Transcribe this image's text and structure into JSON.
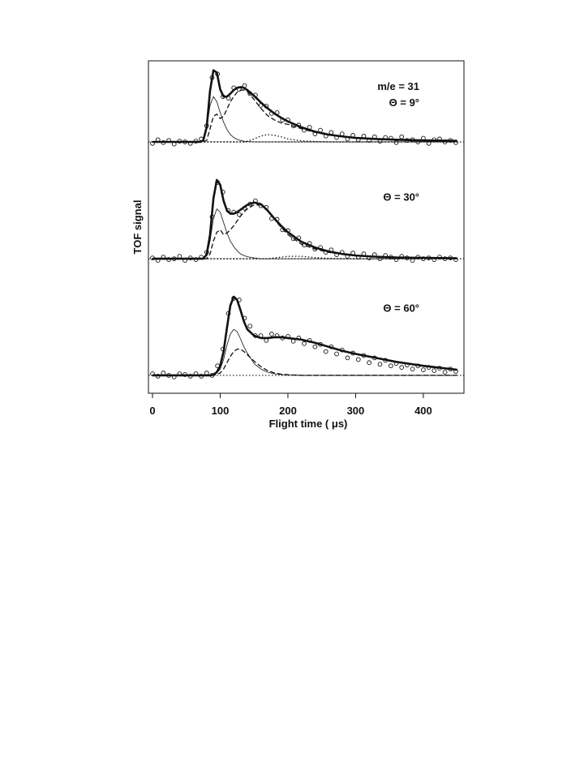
{
  "chart_data": {
    "type": "line",
    "xlabel": "Flight time ( μs)",
    "ylabel": "TOF signal",
    "xlim": [
      -6,
      460
    ],
    "xticks": [
      0,
      100,
      200,
      300,
      400
    ],
    "point_x": [
      0,
      8,
      16,
      24,
      32,
      40,
      48,
      56,
      64,
      72,
      80,
      88,
      96,
      104,
      112,
      120,
      128,
      136,
      144,
      152,
      160,
      168,
      176,
      184,
      192,
      200,
      208,
      216,
      224,
      232,
      240,
      248,
      256,
      264,
      272,
      280,
      288,
      296,
      304,
      312,
      320,
      328,
      336,
      344,
      352,
      360,
      368,
      376,
      384,
      392,
      400,
      408,
      416,
      424,
      432,
      440,
      448
    ],
    "fit_x": [
      0,
      40,
      70,
      75,
      80,
      85,
      90,
      95,
      100,
      105,
      110,
      115,
      120,
      125,
      130,
      135,
      140,
      150,
      160,
      170,
      180,
      190,
      200,
      220,
      240,
      260,
      280,
      300,
      330,
      360,
      400,
      450
    ],
    "panels": [
      {
        "annotations": [
          "m/e = 31",
          "Θ = 9°"
        ],
        "ylim": [
          -0.407,
          1.11
        ],
        "points": [
          -0.02,
          0.03,
          -0.01,
          0.02,
          -0.03,
          0.01,
          0.0,
          -0.02,
          0.01,
          0.04,
          0.22,
          0.88,
          0.93,
          0.62,
          0.6,
          0.74,
          0.72,
          0.77,
          0.66,
          0.64,
          0.5,
          0.49,
          0.39,
          0.4,
          0.3,
          0.3,
          0.22,
          0.23,
          0.16,
          0.2,
          0.11,
          0.16,
          0.08,
          0.13,
          0.06,
          0.11,
          0.04,
          0.09,
          0.03,
          0.08,
          0.02,
          0.07,
          0.01,
          0.06,
          0.05,
          -0.01,
          0.07,
          0.02,
          0.03,
          0.0,
          0.05,
          -0.02,
          0.03,
          0.04,
          0.0,
          0.02,
          -0.01
        ],
        "series": [
          {
            "style": "thick",
            "values": [
              0,
              0,
              0,
              0.02,
              0.2,
              0.7,
              0.98,
              0.95,
              0.72,
              0.62,
              0.62,
              0.66,
              0.71,
              0.74,
              0.75,
              0.74,
              0.71,
              0.63,
              0.54,
              0.46,
              0.39,
              0.33,
              0.28,
              0.2,
              0.14,
              0.1,
              0.075,
              0.055,
              0.04,
              0.03,
              0.02,
              0.015
            ]
          },
          {
            "style": "thin",
            "values": [
              0,
              0,
              0,
              0.02,
              0.18,
              0.5,
              0.62,
              0.55,
              0.4,
              0.27,
              0.17,
              0.1,
              0.06,
              0.035,
              0.02,
              0.01,
              0.005,
              0,
              0,
              0,
              0,
              0,
              0,
              0,
              0,
              0,
              0,
              0,
              0,
              0,
              0,
              0
            ]
          },
          {
            "style": "dashed",
            "values": [
              0,
              0,
              0,
              0,
              0.02,
              0.18,
              0.35,
              0.38,
              0.32,
              0.35,
              0.45,
              0.55,
              0.62,
              0.68,
              0.71,
              0.71,
              0.69,
              0.58,
              0.46,
              0.36,
              0.3,
              0.26,
              0.24,
              0.18,
              0.13,
              0.095,
              0.07,
              0.053,
              0.038,
              0.028,
              0.02,
              0.015
            ]
          },
          {
            "style": "dotted",
            "values": [
              0,
              0,
              0,
              0,
              0,
              0,
              0,
              0,
              0,
              0,
              0,
              0,
              0,
              0,
              0,
              0,
              0.01,
              0.04,
              0.08,
              0.1,
              0.09,
              0.07,
              0.04,
              0.015,
              0.005,
              0,
              0,
              0,
              0,
              0,
              0,
              0
            ]
          }
        ]
      },
      {
        "annotations": [
          "Θ = 30°"
        ],
        "ylim": [
          -0.295,
          1.084
        ],
        "points": [
          0.01,
          -0.02,
          0.02,
          -0.01,
          0.0,
          0.03,
          -0.02,
          0.01,
          -0.01,
          0.02,
          0.08,
          0.52,
          0.95,
          0.83,
          0.6,
          0.58,
          0.55,
          0.63,
          0.68,
          0.72,
          0.66,
          0.64,
          0.5,
          0.49,
          0.36,
          0.35,
          0.25,
          0.26,
          0.17,
          0.19,
          0.12,
          0.14,
          0.08,
          0.11,
          0.05,
          0.08,
          0.03,
          0.07,
          0.02,
          0.06,
          0.01,
          0.05,
          0.0,
          0.04,
          0.02,
          -0.01,
          0.03,
          0.01,
          -0.02,
          0.02,
          0.0,
          0.01,
          -0.01,
          0.02,
          0.0,
          0.01,
          -0.01
        ],
        "series": [
          {
            "style": "thick",
            "values": [
              0,
              0,
              0,
              0,
              0.05,
              0.3,
              0.75,
              0.98,
              0.92,
              0.72,
              0.6,
              0.56,
              0.56,
              0.58,
              0.61,
              0.64,
              0.67,
              0.7,
              0.68,
              0.6,
              0.5,
              0.41,
              0.33,
              0.21,
              0.14,
              0.09,
              0.06,
              0.04,
              0.025,
              0.015,
              0.01,
              0.005
            ]
          },
          {
            "style": "thin",
            "values": [
              0,
              0,
              0,
              0,
              0.04,
              0.22,
              0.5,
              0.62,
              0.58,
              0.45,
              0.32,
              0.22,
              0.15,
              0.1,
              0.06,
              0.04,
              0.025,
              0.01,
              0,
              0,
              0,
              0,
              0,
              0,
              0,
              0,
              0,
              0,
              0,
              0,
              0,
              0
            ]
          },
          {
            "style": "dashed",
            "values": [
              0,
              0,
              0,
              0,
              0,
              0.06,
              0.22,
              0.33,
              0.36,
              0.3,
              0.32,
              0.36,
              0.41,
              0.47,
              0.53,
              0.58,
              0.62,
              0.67,
              0.67,
              0.6,
              0.49,
              0.39,
              0.3,
              0.18,
              0.12,
              0.08,
              0.055,
              0.04,
              0.025,
              0.015,
              0.01,
              0.005
            ]
          },
          {
            "style": "dotted",
            "values": [
              0,
              0,
              0,
              0,
              0,
              0,
              0,
              0,
              0,
              0,
              0,
              0,
              0,
              0,
              0,
              0,
              0,
              0,
              0,
              0,
              0.01,
              0.02,
              0.03,
              0.03,
              0.015,
              0.005,
              0,
              0,
              0,
              0,
              0,
              0
            ]
          }
        ]
      },
      {
        "annotations": [
          "Θ = 60°"
        ],
        "ylim": [
          -0.225,
          1.17
        ],
        "points": [
          0.02,
          -0.01,
          0.03,
          0.0,
          -0.02,
          0.02,
          0.01,
          -0.01,
          0.02,
          -0.01,
          0.03,
          0.0,
          0.12,
          0.33,
          0.78,
          0.97,
          0.95,
          0.72,
          0.62,
          0.5,
          0.5,
          0.44,
          0.52,
          0.5,
          0.47,
          0.49,
          0.43,
          0.47,
          0.4,
          0.44,
          0.36,
          0.39,
          0.3,
          0.36,
          0.27,
          0.32,
          0.22,
          0.28,
          0.2,
          0.25,
          0.16,
          0.22,
          0.14,
          0.19,
          0.12,
          0.15,
          0.1,
          0.13,
          0.08,
          0.12,
          0.07,
          0.1,
          0.06,
          0.09,
          0.04,
          0.08,
          0.05
        ],
        "series": [
          {
            "style": "thick",
            "values": [
              0,
              0,
              0,
              0,
              0,
              0,
              0.01,
              0.04,
              0.12,
              0.3,
              0.6,
              0.88,
              0.99,
              0.95,
              0.82,
              0.68,
              0.58,
              0.5,
              0.47,
              0.47,
              0.48,
              0.48,
              0.47,
              0.45,
              0.41,
              0.36,
              0.31,
              0.27,
              0.22,
              0.17,
              0.12,
              0.07
            ]
          },
          {
            "style": "thin",
            "values": [
              0,
              0,
              0,
              0,
              0,
              0,
              0.01,
              0.03,
              0.08,
              0.2,
              0.38,
              0.52,
              0.58,
              0.55,
              0.46,
              0.36,
              0.28,
              0.15,
              0.08,
              0.04,
              0.02,
              0.01,
              0.005,
              0,
              0,
              0,
              0,
              0,
              0,
              0,
              0,
              0
            ]
          },
          {
            "style": "dashed",
            "values": [
              0,
              0,
              0,
              0,
              0,
              0,
              0,
              0.01,
              0.03,
              0.08,
              0.16,
              0.24,
              0.3,
              0.33,
              0.33,
              0.3,
              0.26,
              0.18,
              0.11,
              0.06,
              0.03,
              0.015,
              0.008,
              0,
              0,
              0,
              0,
              0,
              0,
              0,
              0,
              0
            ]
          }
        ]
      }
    ]
  }
}
